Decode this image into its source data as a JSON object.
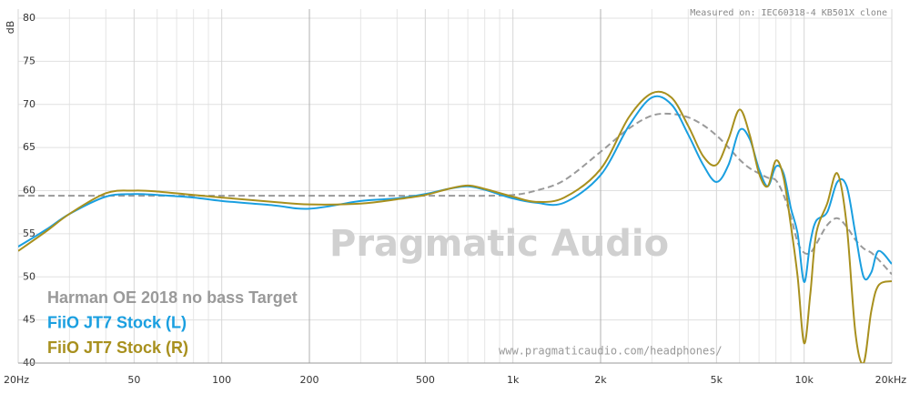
{
  "chart_data": {
    "type": "line",
    "y_label": "dB",
    "note_top": "Measured on: IEC60318-4 KB501X clone",
    "note_bottom": "www.pragmaticaudio.com/headphones/",
    "watermark": "Pragmatic Audio",
    "log_x": true,
    "grid": true,
    "xlim": [
      20,
      20000
    ],
    "ylim": [
      40,
      80
    ],
    "xticks": [
      {
        "value": 20,
        "label": "20Hz"
      },
      50,
      100,
      200,
      500,
      {
        "value": 1000,
        "label": "1k"
      },
      {
        "value": 2000,
        "label": "2k"
      },
      {
        "value": 5000,
        "label": "5k"
      },
      {
        "value": 10000,
        "label": "10k"
      },
      {
        "value": 20000,
        "label": "20kHz"
      }
    ],
    "minor_xgrid": [
      30,
      40,
      60,
      70,
      80,
      90,
      300,
      400,
      600,
      700,
      800,
      900,
      3000,
      4000,
      6000,
      7000,
      8000,
      9000
    ],
    "yticks": [
      40,
      45,
      50,
      55,
      60,
      65,
      70,
      75,
      80
    ],
    "legend": "lower left",
    "x": [
      20,
      25,
      30,
      40,
      50,
      60,
      80,
      100,
      150,
      200,
      300,
      400,
      500,
      600,
      700,
      800,
      1000,
      1200,
      1500,
      2000,
      2500,
      3000,
      3500,
      4000,
      4500,
      5000,
      5500,
      6000,
      6500,
      7000,
      7500,
      8000,
      8500,
      9000,
      9500,
      10000,
      10500,
      11000,
      12000,
      13000,
      14000,
      15000,
      16000,
      17000,
      18000,
      20000
    ],
    "series": [
      {
        "name": "Harman OE 2018 no bass Target",
        "color": "#9a9a9a",
        "style": "dashed",
        "values": [
          59.4,
          59.4,
          59.4,
          59.4,
          59.4,
          59.4,
          59.4,
          59.4,
          59.4,
          59.4,
          59.4,
          59.4,
          59.4,
          59.4,
          59.4,
          59.4,
          59.5,
          60.0,
          61.2,
          64.5,
          67.2,
          68.7,
          68.9,
          68.5,
          67.6,
          66.4,
          65.0,
          63.6,
          62.6,
          62.0,
          61.5,
          61.2,
          59.5,
          57.0,
          54.0,
          52.8,
          52.8,
          53.8,
          56.0,
          56.8,
          55.8,
          54.3,
          53.3,
          52.8,
          52.0,
          50.3
        ]
      },
      {
        "name": "FiiO JT7 Stock (L)",
        "color": "#1a9fe0",
        "style": "solid",
        "values": [
          53.5,
          55.5,
          57.3,
          59.3,
          59.6,
          59.5,
          59.2,
          58.8,
          58.3,
          57.9,
          58.8,
          59.1,
          59.6,
          60.2,
          60.5,
          60.1,
          59.1,
          58.6,
          58.6,
          61.8,
          67.5,
          70.8,
          70.0,
          66.5,
          63.0,
          61.0,
          63.0,
          67.0,
          66.0,
          62.5,
          60.5,
          62.8,
          62.0,
          58.0,
          55.0,
          49.4,
          54.0,
          56.5,
          57.5,
          61.0,
          60.5,
          55.0,
          50.0,
          50.5,
          53.0,
          51.5
        ]
      },
      {
        "name": "FiiO JT7 Stock (R)",
        "color": "#a8901e",
        "style": "solid",
        "values": [
          53.0,
          55.3,
          57.3,
          59.7,
          60.0,
          59.9,
          59.5,
          59.2,
          58.7,
          58.4,
          58.5,
          59.0,
          59.5,
          60.2,
          60.6,
          60.2,
          59.3,
          58.7,
          59.2,
          62.5,
          68.5,
          71.3,
          70.8,
          67.5,
          64.0,
          63.0,
          66.0,
          69.4,
          66.5,
          62.0,
          60.5,
          63.5,
          61.5,
          56.0,
          50.0,
          42.3,
          48.0,
          55.0,
          58.5,
          62.0,
          56.0,
          43.5,
          40.0,
          46.0,
          49.0,
          49.5
        ]
      }
    ]
  }
}
